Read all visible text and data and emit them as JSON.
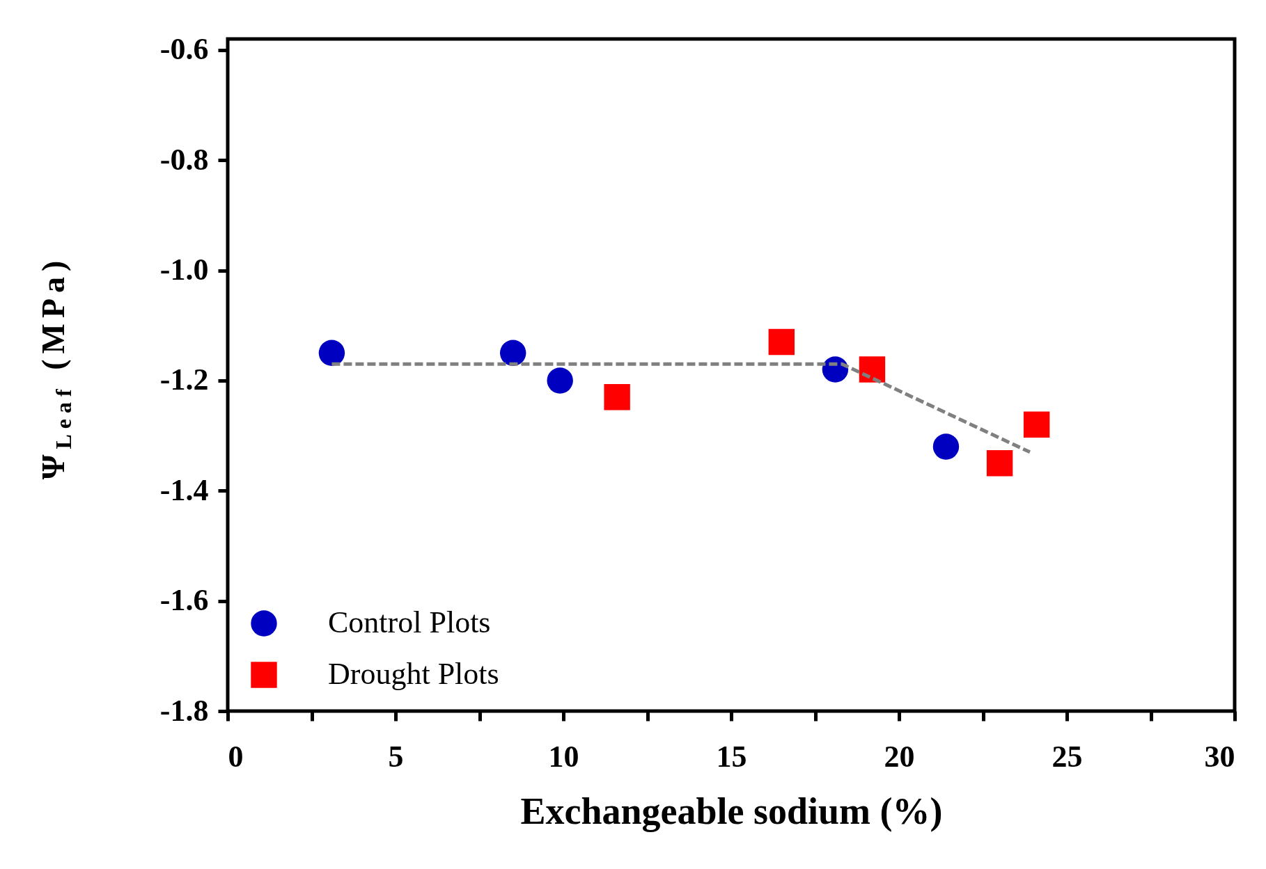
{
  "chart_data": {
    "type": "scatter",
    "xlabel": "Exchangeable sodium (%)",
    "ylabel": "Ψ$_{Leaf}$ (MPa)",
    "xlim": [
      0,
      30
    ],
    "ylim": [
      -1.8,
      -0.58
    ],
    "xticks": [
      0,
      {
        "value": 2.5,
        "label": null
      },
      5,
      {
        "value": 7.5,
        "label": null
      },
      10,
      {
        "value": 12.5,
        "label": null
      },
      15,
      {
        "value": 17.5,
        "label": null
      },
      20,
      {
        "value": 22.5,
        "label": null
      },
      25,
      {
        "value": 27.5,
        "label": null
      },
      30
    ],
    "yticks": [
      -0.6,
      -0.8,
      {
        "value": -1,
        "label": "-1.0"
      },
      -1.2,
      -1.4,
      -1.6,
      -1.8
    ],
    "grid": false,
    "legend": "bottom left",
    "series": [
      {
        "name": "Control Plots",
        "type": "scatter",
        "marker": "circle",
        "color": "#0000c0",
        "x": [
          3.1,
          8.5,
          9.9,
          18.1,
          21.4
        ],
        "values": [
          -1.15,
          -1.15,
          -1.2,
          -1.18,
          -1.32
        ]
      },
      {
        "name": "Drought Plots",
        "type": "scatter",
        "marker": "square",
        "color": "#ff0000",
        "x": [
          11.6,
          16.5,
          19.2,
          23.0,
          24.1
        ],
        "values": [
          -1.23,
          -1.13,
          -1.18,
          -1.35,
          -1.28
        ]
      },
      {
        "type": "line",
        "line_style": "dashed",
        "color": "#808080",
        "x": [
          3.1,
          18.3,
          23.9
        ],
        "values": [
          -1.17,
          -1.17,
          -1.33
        ]
      }
    ]
  }
}
